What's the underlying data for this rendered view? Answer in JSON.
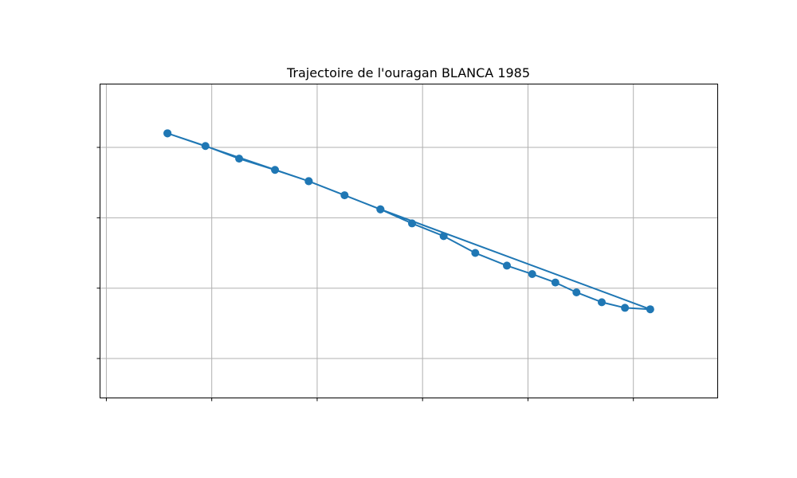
{
  "chart_data": {
    "type": "line",
    "title": "Trajectoire de l'ouragan BLANCA 1985",
    "xlabel": "",
    "ylabel": "",
    "xlim": [
      -0.3,
      29
    ],
    "ylim": [
      -2.8,
      19.5
    ],
    "xgrid": [
      0,
      5,
      10,
      15,
      20,
      25
    ],
    "ygrid": [
      0,
      5,
      10,
      15
    ],
    "grid": true,
    "axis_ticks_labels_visible": false,
    "series": [
      {
        "color": "#1f77b4",
        "marker": "circle",
        "points": [
          [
            2.9,
            16.0
          ],
          [
            4.7,
            15.1
          ],
          [
            6.3,
            14.2
          ],
          [
            8.0,
            13.4
          ],
          [
            9.6,
            12.6
          ],
          [
            11.3,
            11.6
          ],
          [
            13.0,
            10.6
          ],
          [
            14.5,
            9.6
          ],
          [
            16.0,
            8.7
          ],
          [
            17.5,
            7.5
          ],
          [
            19.0,
            6.6
          ],
          [
            20.2,
            6.0
          ],
          [
            21.3,
            5.4
          ],
          [
            22.3,
            4.7
          ],
          [
            23.5,
            4.0
          ],
          [
            24.6,
            3.6
          ],
          [
            25.8,
            3.5
          ],
          [
            13.0,
            10.6
          ],
          [
            9.6,
            12.6
          ],
          [
            2.9,
            16.0
          ]
        ]
      }
    ]
  }
}
